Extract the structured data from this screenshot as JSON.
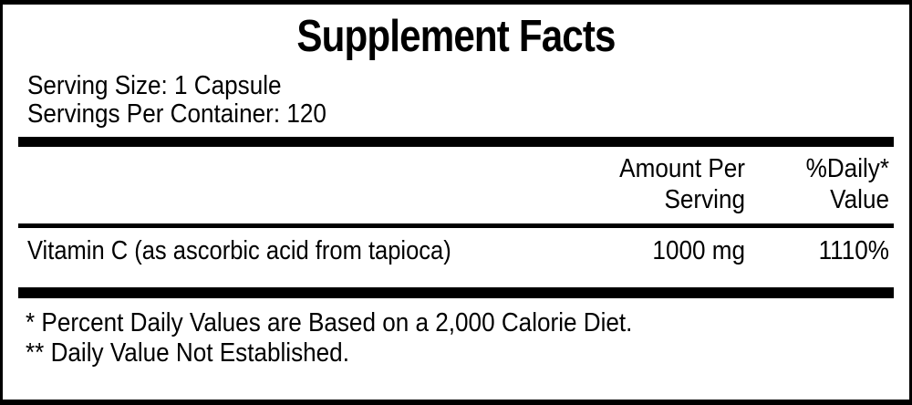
{
  "label": {
    "title": "Supplement Facts",
    "serving_size": "Serving Size: 1 Capsule",
    "servings_per_container": "Servings Per Container: 120",
    "columns": {
      "amount_line1": "Amount Per",
      "amount_line2": "Serving",
      "dv_line1": "%Daily*",
      "dv_line2": "Value"
    },
    "rows": [
      {
        "name": "Vitamin C (as ascorbic acid from tapioca)",
        "amount": "1000 mg",
        "daily_value": "1110%"
      }
    ],
    "footnotes": [
      "* Percent Daily Values are Based on a 2,000 Calorie Diet.",
      "** Daily Value Not Established."
    ],
    "colors": {
      "text": "#000000",
      "background": "#ffffff",
      "border": "#000000"
    }
  }
}
